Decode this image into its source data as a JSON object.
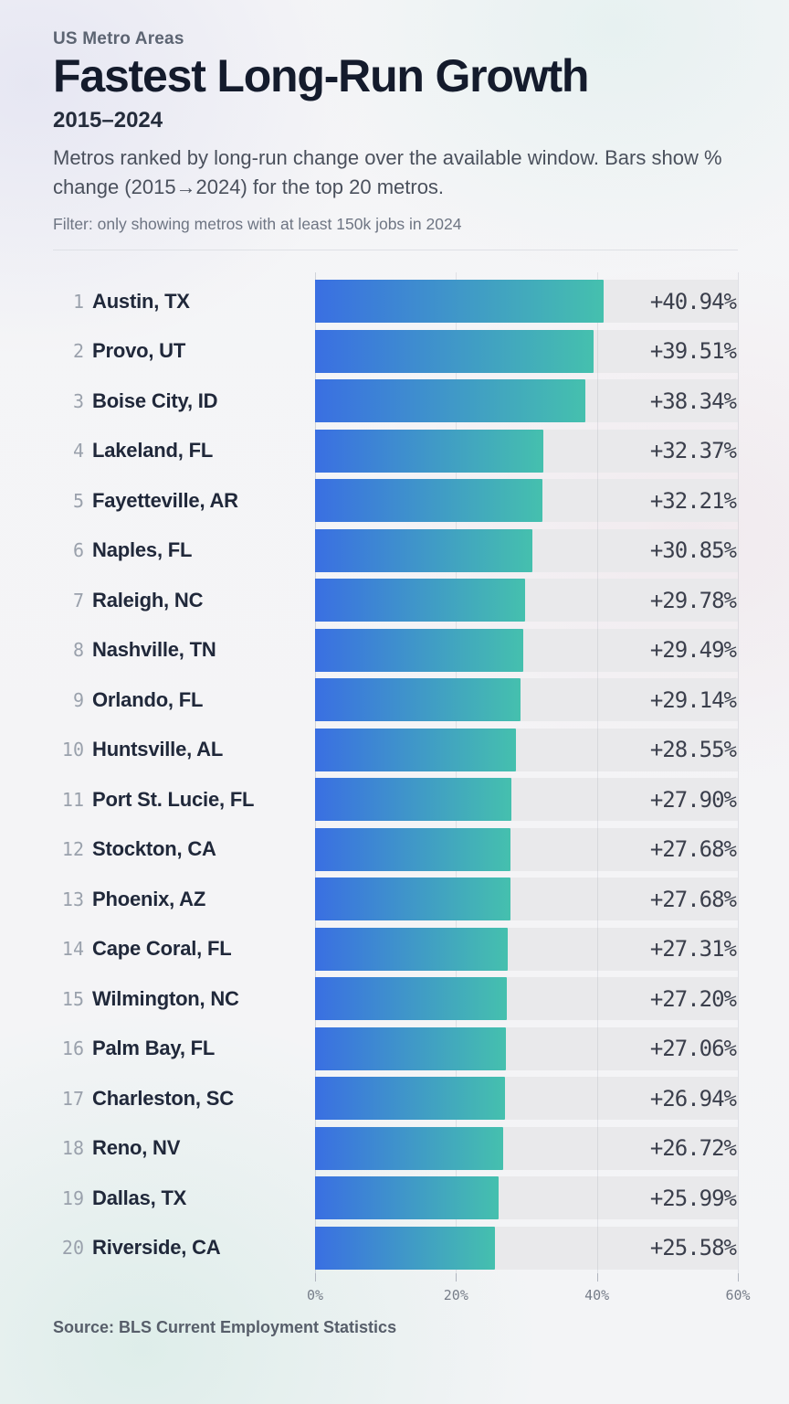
{
  "header": {
    "kicker": "US Metro Areas",
    "title": "Fastest Long-Run Growth",
    "period": "2015–2024",
    "description": "Metros ranked by long-run change over the available window. Bars show % change (2015→2024) for the top 20 metros.",
    "filter_note": "Filter: only showing metros with at least 150k jobs in 2024"
  },
  "chart_data": {
    "type": "bar",
    "orientation": "horizontal",
    "title": "Fastest Long-Run Growth",
    "subtitle": "2015–2024",
    "xlabel": "",
    "xlim": [
      0,
      60
    ],
    "grid": true,
    "legend": "none",
    "bar_gradient": [
      "#3a6fe2",
      "#45c0ae"
    ],
    "track_color": "#e9e9eb",
    "x_ticks": [
      {
        "value": 0,
        "label": "0%"
      },
      {
        "value": 20,
        "label": "20%"
      },
      {
        "value": 40,
        "label": "40%"
      },
      {
        "value": 60,
        "label": "60%"
      }
    ],
    "rows": [
      {
        "rank": "1",
        "metro": "Austin, TX",
        "value": 40.94,
        "label": "+40.94%"
      },
      {
        "rank": "2",
        "metro": "Provo, UT",
        "value": 39.51,
        "label": "+39.51%"
      },
      {
        "rank": "3",
        "metro": "Boise City, ID",
        "value": 38.34,
        "label": "+38.34%"
      },
      {
        "rank": "4",
        "metro": "Lakeland, FL",
        "value": 32.37,
        "label": "+32.37%"
      },
      {
        "rank": "5",
        "metro": "Fayetteville, AR",
        "value": 32.21,
        "label": "+32.21%"
      },
      {
        "rank": "6",
        "metro": "Naples, FL",
        "value": 30.85,
        "label": "+30.85%"
      },
      {
        "rank": "7",
        "metro": "Raleigh, NC",
        "value": 29.78,
        "label": "+29.78%"
      },
      {
        "rank": "8",
        "metro": "Nashville, TN",
        "value": 29.49,
        "label": "+29.49%"
      },
      {
        "rank": "9",
        "metro": "Orlando, FL",
        "value": 29.14,
        "label": "+29.14%"
      },
      {
        "rank": "10",
        "metro": "Huntsville, AL",
        "value": 28.55,
        "label": "+28.55%"
      },
      {
        "rank": "11",
        "metro": "Port St. Lucie, FL",
        "value": 27.9,
        "label": "+27.90%"
      },
      {
        "rank": "12",
        "metro": "Stockton, CA",
        "value": 27.68,
        "label": "+27.68%"
      },
      {
        "rank": "13",
        "metro": "Phoenix, AZ",
        "value": 27.68,
        "label": "+27.68%"
      },
      {
        "rank": "14",
        "metro": "Cape Coral, FL",
        "value": 27.31,
        "label": "+27.31%"
      },
      {
        "rank": "15",
        "metro": "Wilmington, NC",
        "value": 27.2,
        "label": "+27.20%"
      },
      {
        "rank": "16",
        "metro": "Palm Bay, FL",
        "value": 27.06,
        "label": "+27.06%"
      },
      {
        "rank": "17",
        "metro": "Charleston, SC",
        "value": 26.94,
        "label": "+26.94%"
      },
      {
        "rank": "18",
        "metro": "Reno, NV",
        "value": 26.72,
        "label": "+26.72%"
      },
      {
        "rank": "19",
        "metro": "Dallas, TX",
        "value": 25.99,
        "label": "+25.99%"
      },
      {
        "rank": "20",
        "metro": "Riverside, CA",
        "value": 25.58,
        "label": "+25.58%"
      }
    ]
  },
  "footer": {
    "source": "Source: BLS Current Employment Statistics"
  }
}
